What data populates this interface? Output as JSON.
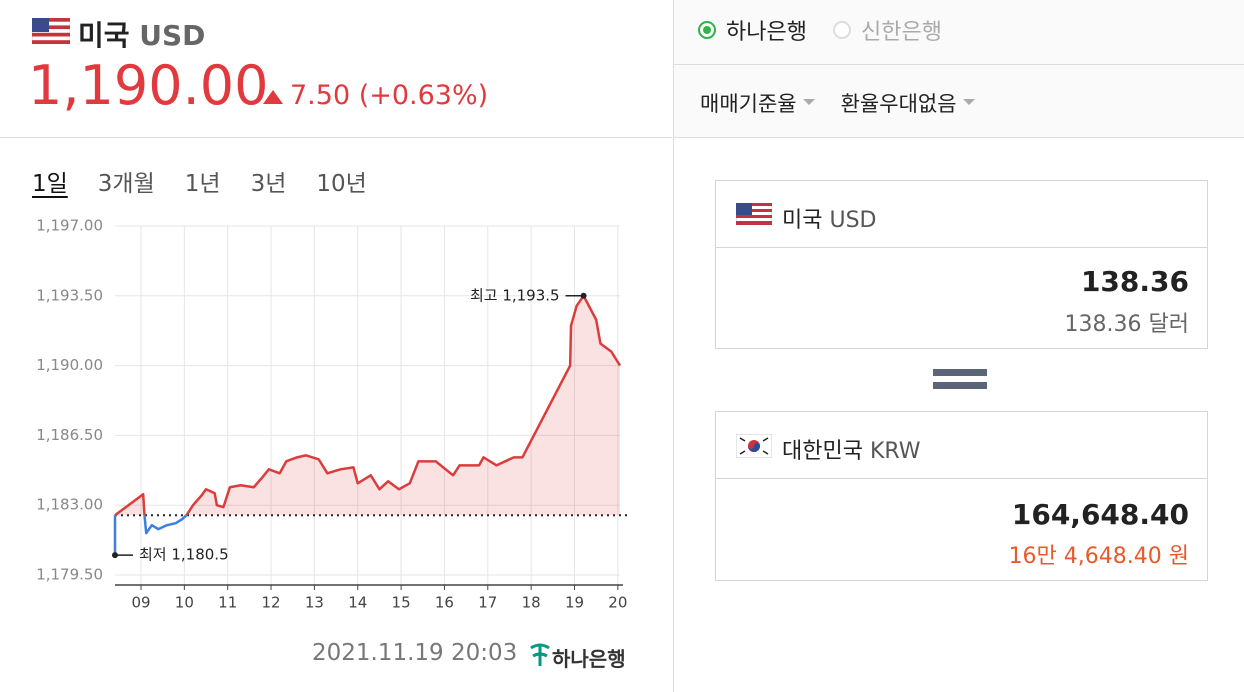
{
  "header": {
    "country": "미국",
    "currency": "USD",
    "price": "1,190.00",
    "change": "7.50 (+0.63%)"
  },
  "tabs": [
    "1일",
    "3개월",
    "1년",
    "3년",
    "10년"
  ],
  "chart_data": {
    "type": "line",
    "x": [
      8.4,
      8.4,
      9.05,
      9.08,
      9.12,
      9.25,
      9.4,
      9.6,
      9.8,
      9.95,
      10.05,
      10.2,
      10.4,
      10.5,
      10.7,
      10.75,
      10.9,
      11.05,
      11.3,
      11.6,
      11.8,
      11.95,
      12.2,
      12.35,
      12.6,
      12.8,
      13.1,
      13.3,
      13.6,
      13.9,
      14.0,
      14.3,
      14.5,
      14.7,
      14.95,
      15.2,
      15.4,
      15.8,
      16.2,
      16.35,
      16.8,
      16.9,
      17.2,
      17.6,
      17.8,
      18.9,
      18.92,
      19.05,
      19.21,
      19.5,
      19.6,
      19.85,
      20.05
    ],
    "series": [
      {
        "color": "#dc3c3c",
        "values": [
          null,
          1182.5,
          1183.55,
          1182.5,
          null,
          null,
          null,
          null,
          null,
          null,
          1182.5,
          1183.0,
          1183.5,
          1183.8,
          1183.6,
          1183.0,
          1182.9,
          1183.9,
          1184.0,
          1183.9,
          1184.4,
          1184.8,
          1184.6,
          1185.2,
          1185.4,
          1185.5,
          1185.3,
          1184.6,
          1184.8,
          1184.9,
          1184.1,
          1184.5,
          1183.8,
          1184.2,
          1183.8,
          1184.1,
          1185.2,
          1185.2,
          1184.5,
          1185.0,
          1185.0,
          1185.4,
          1185.0,
          1185.4,
          1185.4,
          1190.0,
          1192.0,
          1193.0,
          1193.5,
          1192.3,
          1191.1,
          1190.7,
          1190.0
        ]
      },
      {
        "color": "#3b7fe3",
        "values": [
          1180.5,
          1182.5,
          null,
          1182.5,
          1181.6,
          1182.0,
          1181.8,
          1182.0,
          1182.1,
          1182.3,
          1182.5,
          null,
          null,
          null,
          null,
          null,
          null,
          null,
          null,
          null,
          null,
          null,
          null,
          null,
          null,
          null,
          null,
          null,
          null,
          null,
          null,
          null,
          null,
          null,
          null,
          null,
          null,
          null,
          null,
          null,
          null,
          null,
          null,
          null,
          null,
          null,
          null,
          null,
          null,
          null,
          null,
          null,
          null
        ]
      }
    ],
    "xlim": [
      8.4,
      20.05
    ],
    "ylim": [
      1179,
      1197
    ],
    "xticks": [
      {
        "value": 9,
        "label": "09"
      },
      10,
      11,
      12,
      13,
      14,
      15,
      16,
      17,
      18,
      19,
      20
    ],
    "yticks": [
      {
        "value": 1179.5,
        "label": "1,179.50"
      },
      {
        "value": 1183,
        "label": "1,183.00"
      },
      {
        "value": 1186.5,
        "label": "1,186.50"
      },
      {
        "value": 1190,
        "label": "1,190.00"
      },
      {
        "value": 1193.5,
        "label": "1,193.50"
      },
      {
        "value": 1197,
        "label": "1,197.00"
      }
    ],
    "grid": true,
    "reference_line": 1182.5,
    "annotations": [
      {
        "text": "최고 1,193.5",
        "x": 19.21,
        "y": 1193.5
      },
      {
        "text": "최저 1,180.5",
        "x": 8.4,
        "y": 1180.5
      }
    ]
  },
  "footer": {
    "timestamp": "2021.11.19 20:03",
    "logo": "하나은행"
  },
  "banks": [
    "하나은행",
    "신한은행"
  ],
  "selected_bank": 0,
  "dropdowns": [
    "매매기준율",
    "환율우대없음"
  ],
  "converter": {
    "from": {
      "country": "미국",
      "currency": "USD",
      "amount": "138.36",
      "amount_text": "138.36 달러"
    },
    "to": {
      "country": "대한민국",
      "currency": "KRW",
      "amount": "164,648.40",
      "amount_text": "16만 4,648.40 원"
    }
  }
}
